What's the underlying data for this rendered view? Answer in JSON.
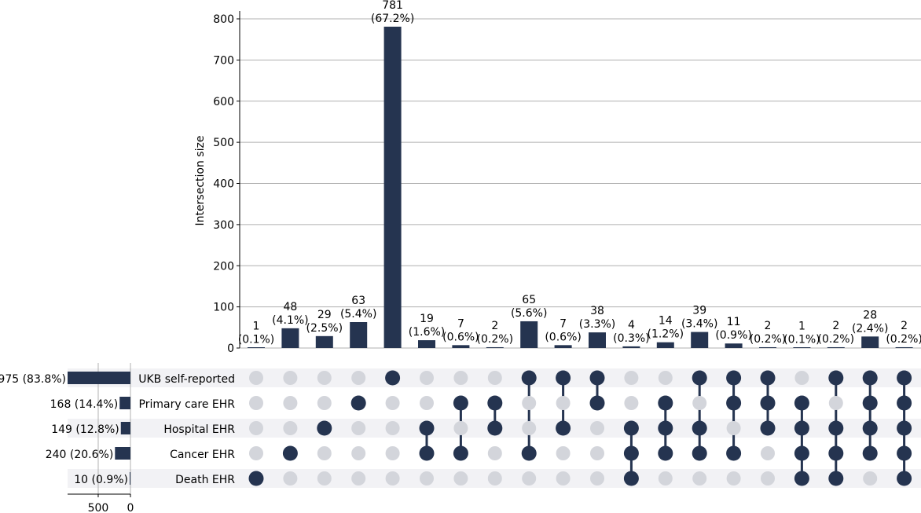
{
  "chart_data": {
    "type": "upset",
    "ylabel": "Intersection size",
    "y_ticks": [
      0,
      100,
      200,
      300,
      400,
      500,
      600,
      700,
      800
    ],
    "ylim": [
      0,
      820
    ],
    "set_size_ticks": [
      500,
      0
    ],
    "set_size_max": 975,
    "colors": {
      "bar": "#253450",
      "dot_active": "#253450",
      "dot_inactive": "#d3d5db",
      "row_stripe": "#f2f2f5",
      "grid": "#b0b0b0"
    },
    "sets": [
      {
        "name": "UKB self-reported",
        "size": 975,
        "label": "975 (83.8%)"
      },
      {
        "name": "Primary care EHR",
        "size": 168,
        "label": "168 (14.4%)"
      },
      {
        "name": "Hospital EHR",
        "size": 149,
        "label": "149 (12.8%)"
      },
      {
        "name": "Cancer EHR",
        "size": 240,
        "label": "240 (20.6%)"
      },
      {
        "name": "Death EHR",
        "size": 10,
        "label": "10 (0.9%)"
      }
    ],
    "intersections": [
      {
        "value": 1,
        "count_label": "1",
        "pct_label": "(0.1%)",
        "members": [
          4
        ]
      },
      {
        "value": 48,
        "count_label": "48",
        "pct_label": "(4.1%)",
        "members": [
          3
        ]
      },
      {
        "value": 29,
        "count_label": "29",
        "pct_label": "(2.5%)",
        "members": [
          2
        ]
      },
      {
        "value": 63,
        "count_label": "63",
        "pct_label": "(5.4%)",
        "members": [
          1
        ]
      },
      {
        "value": 781,
        "count_label": "781",
        "pct_label": "(67.2%)",
        "members": [
          0
        ]
      },
      {
        "value": 19,
        "count_label": "19",
        "pct_label": "(1.6%)",
        "members": [
          2,
          3
        ]
      },
      {
        "value": 7,
        "count_label": "7",
        "pct_label": "(0.6%)",
        "members": [
          1,
          3
        ]
      },
      {
        "value": 2,
        "count_label": "2",
        "pct_label": "(0.2%)",
        "members": [
          1,
          2
        ]
      },
      {
        "value": 65,
        "count_label": "65",
        "pct_label": "(5.6%)",
        "members": [
          0,
          3
        ]
      },
      {
        "value": 7,
        "count_label": "7",
        "pct_label": "(0.6%)",
        "members": [
          0,
          2
        ]
      },
      {
        "value": 38,
        "count_label": "38",
        "pct_label": "(3.3%)",
        "members": [
          0,
          1
        ]
      },
      {
        "value": 4,
        "count_label": "4",
        "pct_label": "(0.3%)",
        "members": [
          2,
          3,
          4
        ]
      },
      {
        "value": 14,
        "count_label": "14",
        "pct_label": "(1.2%)",
        "members": [
          1,
          2,
          3
        ]
      },
      {
        "value": 39,
        "count_label": "39",
        "pct_label": "(3.4%)",
        "members": [
          0,
          2,
          3
        ]
      },
      {
        "value": 11,
        "count_label": "11",
        "pct_label": "(0.9%)",
        "members": [
          0,
          1,
          3
        ]
      },
      {
        "value": 2,
        "count_label": "2",
        "pct_label": "(0.2%)",
        "members": [
          0,
          1,
          2
        ]
      },
      {
        "value": 1,
        "count_label": "1",
        "pct_label": "(0.1%)",
        "members": [
          1,
          2,
          3,
          4
        ]
      },
      {
        "value": 2,
        "count_label": "2",
        "pct_label": "(0.2%)",
        "members": [
          0,
          2,
          3,
          4
        ]
      },
      {
        "value": 28,
        "count_label": "28",
        "pct_label": "(2.4%)",
        "members": [
          0,
          1,
          2,
          3
        ]
      },
      {
        "value": 2,
        "count_label": "2",
        "pct_label": "(0.2%)",
        "members": [
          0,
          1,
          2,
          3,
          4
        ]
      }
    ]
  }
}
